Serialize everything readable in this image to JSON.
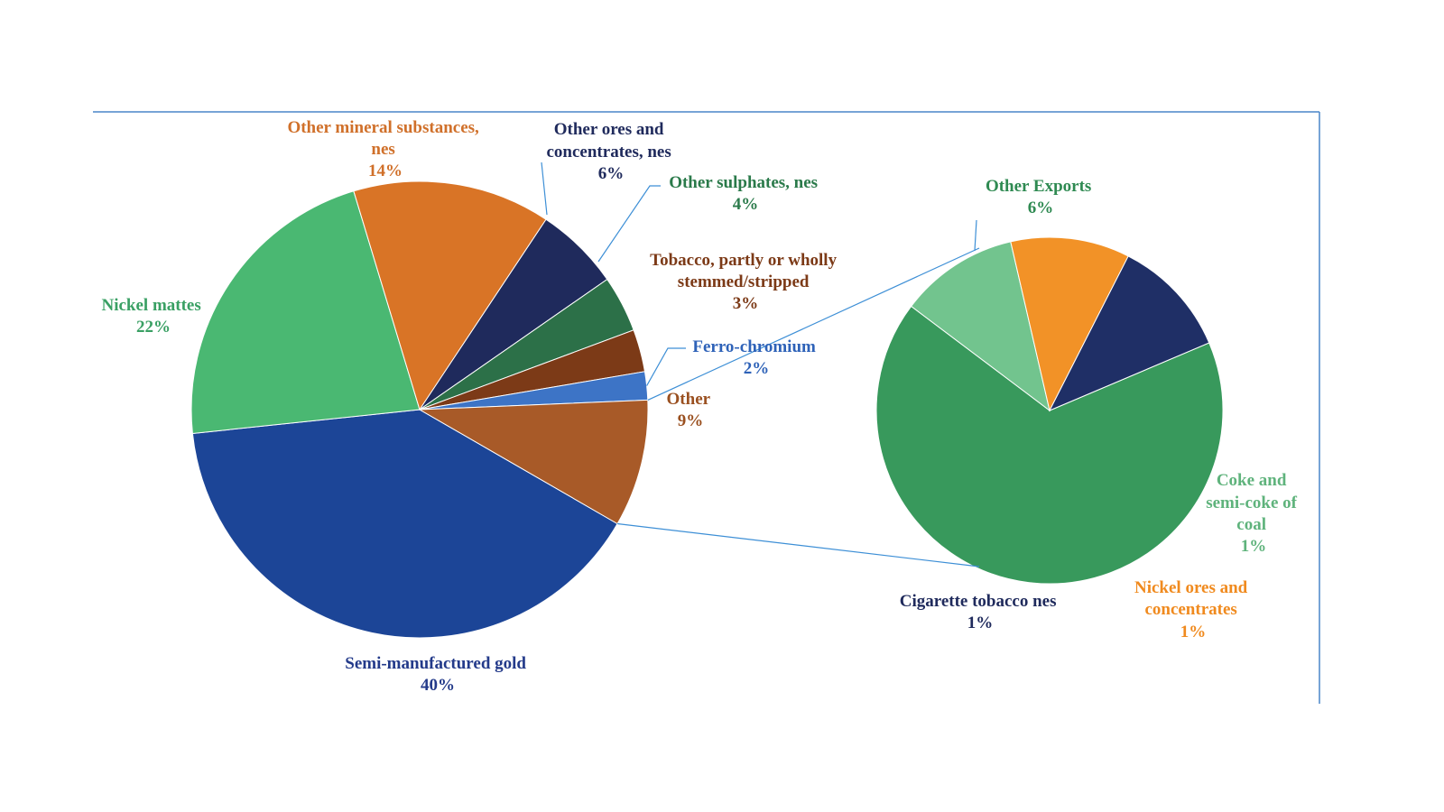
{
  "chart_data": [
    {
      "type": "pie",
      "title": "",
      "slices": [
        {
          "label": "Semi-manufactured gold",
          "value": 40,
          "value_label": "40%",
          "color": "#1c4597"
        },
        {
          "label": "Nickel mattes",
          "value": 22,
          "value_label": "22%",
          "color": "#4ab872"
        },
        {
          "label": "Other mineral substances, nes",
          "value": 14,
          "value_label": "14%",
          "color": "#d97426"
        },
        {
          "label": "Other ores and concentrates, nes",
          "value": 6,
          "value_label": "6%",
          "color": "#1f2a5c"
        },
        {
          "label": "Other sulphates, nes",
          "value": 4,
          "value_label": "4%",
          "color": "#2c7048"
        },
        {
          "label": "Tobacco, partly or wholly stemmed/stripped",
          "value": 3,
          "value_label": "3%",
          "color": "#7c3a17"
        },
        {
          "label": "Ferro-chromium",
          "value": 2,
          "value_label": "2%",
          "color": "#3d74c6"
        },
        {
          "label": "Other",
          "value": 9,
          "value_label": "9%",
          "color": "#a85a28"
        }
      ],
      "label_colors": {
        "Semi-manufactured gold": "#233a8a",
        "Nickel mattes": "#3aa064",
        "Other mineral substances, nes": "#d0702a",
        "Other ores and concentrates, nes": "#1f2a5c",
        "Other sulphates, nes": "#2a7a4a",
        "Tobacco, partly or wholly stemmed/stripped": "#7c3a17",
        "Ferro-chromium": "#2e62b8",
        "Other": "#9a5020"
      }
    },
    {
      "type": "pie",
      "title": "",
      "breakdown_of": "Other",
      "slices": [
        {
          "label": "Other Exports",
          "value": 6,
          "value_label": "6%",
          "color": "#38995c"
        },
        {
          "label": "Coke and semi-coke of coal",
          "value": 1,
          "value_label": "1%",
          "color": "#72c48e"
        },
        {
          "label": "Nickel ores and concentrates",
          "value": 1,
          "value_label": "1%",
          "color": "#f29227"
        },
        {
          "label": "Cigarette tobacco nes",
          "value": 1,
          "value_label": "1%",
          "color": "#1f2f66"
        }
      ],
      "label_colors": {
        "Other Exports": "#2f8a52",
        "Coke and semi-coke of coal": "#5fb37c",
        "Nickel ores and concentrates": "#f08a1e",
        "Cigarette tobacco nes": "#1f2a5c"
      }
    }
  ],
  "frame_color": "#4a86c8",
  "connector_color": "#3d8fd6"
}
